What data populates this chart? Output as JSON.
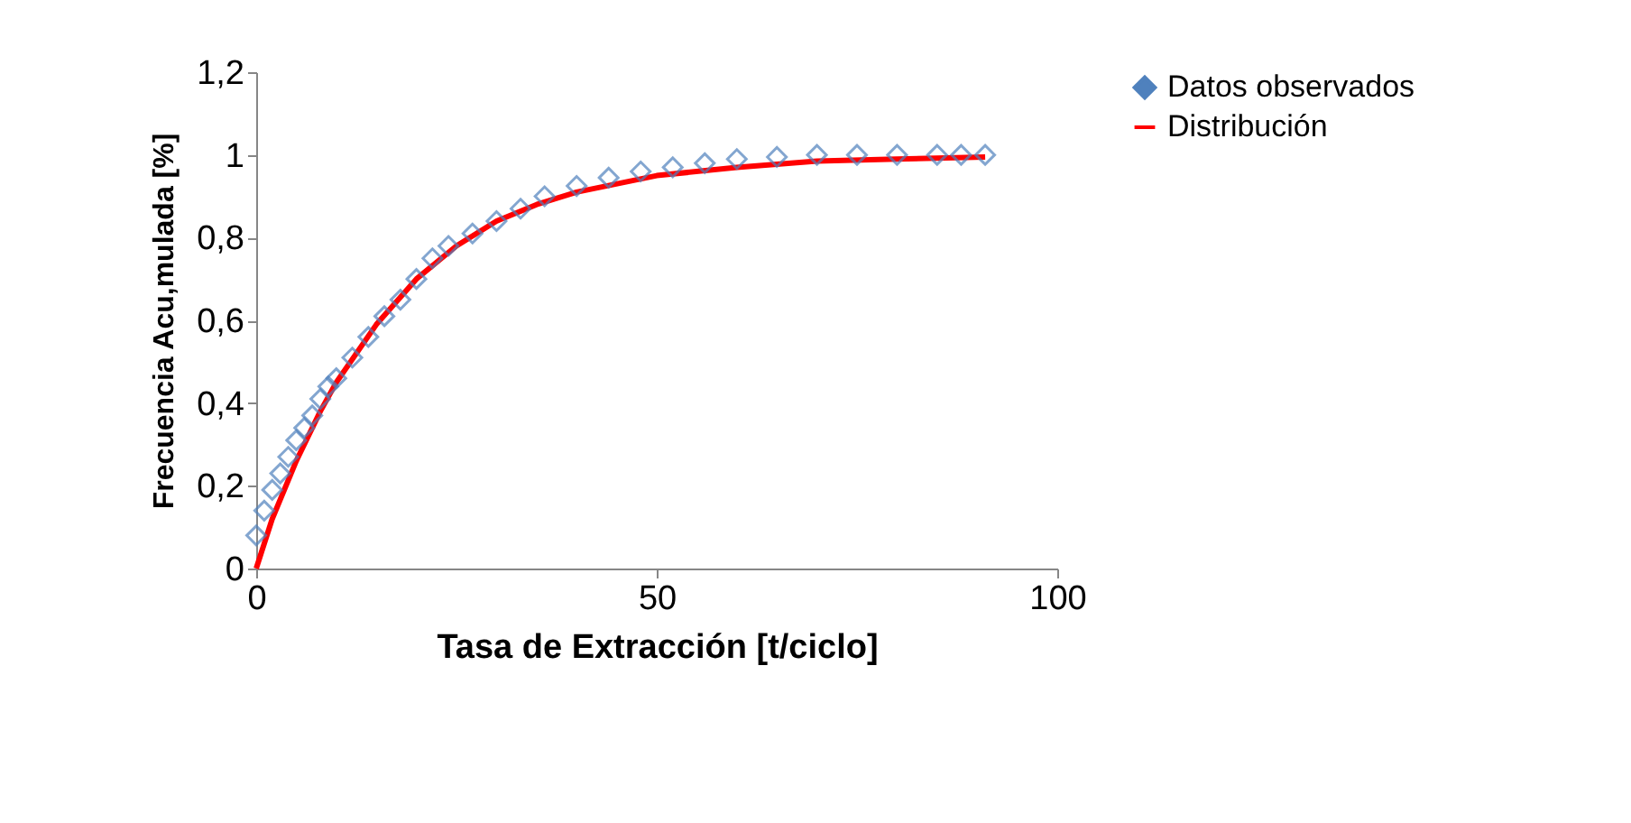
{
  "chart_data": {
    "type": "scatter",
    "xlabel": "Tasa de Extracción [t/ciclo]",
    "ylabel": "Frecuencia Acu,mulada [%]",
    "xlim": [
      0,
      100
    ],
    "xticks": [
      0,
      50,
      100
    ],
    "ylim": [
      0,
      1.2
    ],
    "yticks": [
      0,
      {
        "value": 0.2,
        "label": "0,2"
      },
      {
        "value": 0.4,
        "label": "0,4"
      },
      {
        "value": 0.6,
        "label": "0,6"
      },
      {
        "value": 0.8,
        "label": "0,8"
      },
      1,
      {
        "value": 1.2,
        "label": "1,2"
      }
    ],
    "grid": false,
    "legend": "right",
    "series": [
      {
        "name": "Datos observados",
        "marker": "diamond",
        "color": "#4f81bd",
        "x": [
          0,
          1,
          2,
          3,
          4,
          5,
          6,
          7,
          8,
          9,
          10,
          12,
          14,
          16,
          18,
          20,
          22,
          24,
          27,
          30,
          33,
          36,
          40,
          44,
          48,
          52,
          56,
          60,
          65,
          70,
          75,
          80,
          85,
          88,
          91
        ],
        "values": [
          0.08,
          0.14,
          0.19,
          0.23,
          0.27,
          0.31,
          0.34,
          0.37,
          0.41,
          0.44,
          0.46,
          0.51,
          0.56,
          0.61,
          0.65,
          0.7,
          0.75,
          0.78,
          0.81,
          0.84,
          0.87,
          0.9,
          0.925,
          0.945,
          0.96,
          0.97,
          0.98,
          0.99,
          0.995,
          1,
          1,
          1,
          1,
          1,
          1
        ]
      },
      {
        "name": "Distribución",
        "type": "line",
        "color": "#ff0000",
        "x": [
          0,
          2,
          5,
          8,
          10,
          15,
          20,
          25,
          30,
          35,
          40,
          50,
          60,
          70,
          80,
          91
        ],
        "values": [
          0,
          0.12,
          0.26,
          0.38,
          0.45,
          0.59,
          0.7,
          0.78,
          0.84,
          0.88,
          0.91,
          0.95,
          0.97,
          0.985,
          0.99,
          0.995
        ]
      }
    ]
  }
}
